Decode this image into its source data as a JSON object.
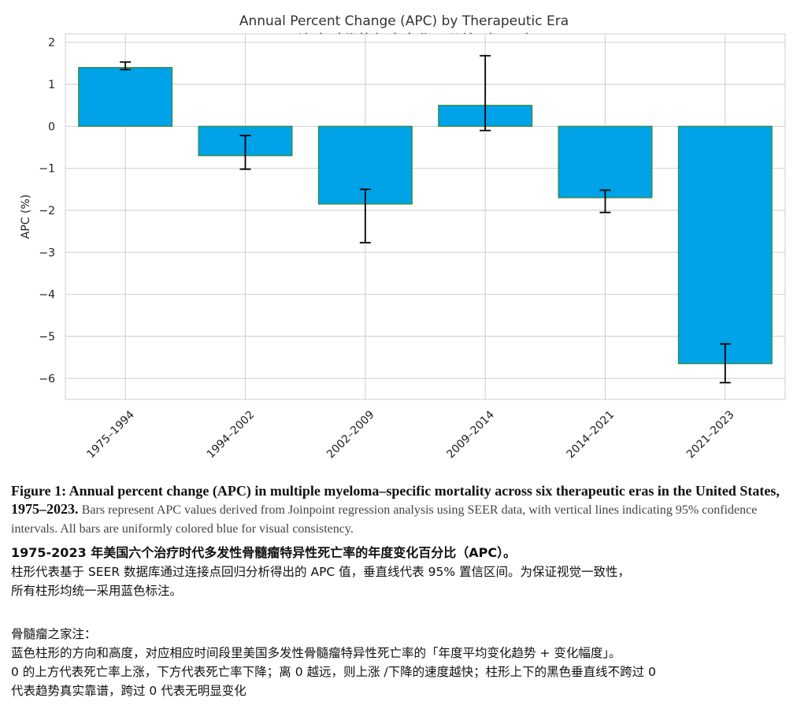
{
  "chart_data": {
    "type": "bar",
    "title": "Annual Percent Change (APC) by Therapeutic Era",
    "subtitle": "不同治疗时代的年度变化百分比（APC）",
    "ylabel": "APC (%)",
    "xlabel": "",
    "ylim": [
      -6.5,
      2.2
    ],
    "yticks": [
      2,
      1,
      0,
      -1,
      -2,
      -3,
      -4,
      -5,
      -6
    ],
    "ytick_labels": [
      "2",
      "1",
      "0",
      "−1",
      "−2",
      "−3",
      "−4",
      "−5",
      "−6"
    ],
    "grid": true,
    "bar_color": "#00a2e8",
    "bar_edge_color": "#3a8a2e",
    "errorbar_color": "#000000",
    "categories": [
      "1975–1994",
      "1994–2002",
      "2002–2009",
      "2009–2014",
      "2014–2021",
      "2021–2023"
    ],
    "values": [
      1.4,
      -0.7,
      -1.85,
      0.5,
      -1.7,
      -5.65
    ],
    "ci_lower": [
      1.35,
      -1.02,
      -2.77,
      -0.1,
      -2.05,
      -6.1
    ],
    "ci_upper": [
      1.53,
      -0.22,
      -1.5,
      1.68,
      -1.52,
      -5.18
    ]
  },
  "caption_en": {
    "bold": "Figure 1: Annual percent change (APC) in multiple myeloma–specific mortality across six therapeutic eras in the United States, 1975–2023.",
    "body": "Bars represent APC values derived from Joinpoint regression analysis using SEER data, with vertical lines indicating 95% confidence intervals. All bars are uniformly colored blue for visual consistency."
  },
  "caption_zh": {
    "title": "1975-2023 年美国六个治疗时代多发性骨髓瘤特异性死亡率的年度变化百分比（APC）。",
    "line1": "柱形代表基于 SEER 数据库通过连接点回归分析得出的 APC 值，垂直线代表 95% 置信区间。为保证视觉一致性，",
    "line2": "所有柱形均统一采用蓝色标注。"
  },
  "note_zh": {
    "heading": "骨髓瘤之家注：",
    "line1": "蓝色柱形的方向和高度，对应相应时间段里美国多发性骨髓瘤特异性死亡率的「年度平均变化趋势 + 变化幅度」。",
    "line2": "0 的上方代表死亡率上涨，下方代表死亡率下降；离 0 越远，则上涨 /下降的速度越快；柱形上下的黑色垂直线不跨过 0",
    "line3": "代表趋势真实靠谱，跨过 0 代表无明显变化"
  }
}
